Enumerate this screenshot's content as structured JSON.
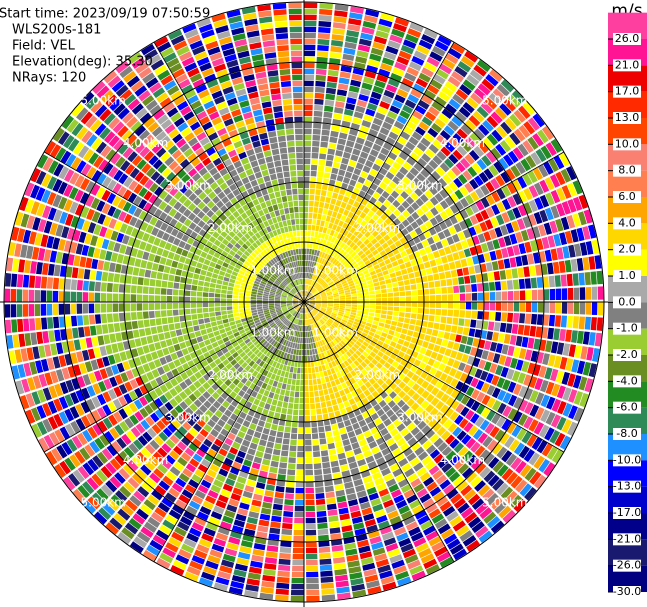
{
  "chart_data": {
    "type": "ppi",
    "header": [
      "Start time: 2023/09/19 07:50:59",
      "WLS200s-181",
      "Field: VEL",
      "Elevation(deg): 35.30",
      "NRays: 120"
    ],
    "range_rings": [
      {
        "value": 1,
        "label": "1.00km"
      },
      {
        "value": 2,
        "label": "2.00km"
      },
      {
        "value": 3,
        "label": "3.00km"
      },
      {
        "value": 4,
        "label": "4.00km"
      },
      {
        "value": 5,
        "label": "5.00km"
      }
    ],
    "colorbar": {
      "title": "m/s",
      "ticks": [
        {
          "value": 26,
          "label": "26.0"
        },
        {
          "value": 21,
          "label": "21.0"
        },
        {
          "value": 17,
          "label": "17.0"
        },
        {
          "value": 13,
          "label": "13.0"
        },
        {
          "value": 10,
          "label": "10.0"
        },
        {
          "value": 8,
          "label": "8.0"
        },
        {
          "value": 6,
          "label": "6.0"
        },
        {
          "value": 4,
          "label": "4.0"
        },
        {
          "value": 2,
          "label": "2.0"
        },
        {
          "value": 1,
          "label": "1.0"
        },
        {
          "value": 0,
          "label": "0.0"
        },
        {
          "value": -1,
          "label": "-1.0"
        },
        {
          "value": -2,
          "label": "-2.0"
        },
        {
          "value": -4,
          "label": "-4.0"
        },
        {
          "value": -6,
          "label": "-6.0"
        },
        {
          "value": -8,
          "label": "-8.0"
        },
        {
          "value": -10,
          "label": "-10.0"
        },
        {
          "value": -13,
          "label": "-13.0"
        },
        {
          "value": -17,
          "label": "-17.0"
        },
        {
          "value": -21,
          "label": "-21.0"
        },
        {
          "value": -26,
          "label": "-26.0"
        },
        {
          "value": -30,
          "label": "-30.0"
        }
      ],
      "colors": [
        "#ff3fa0",
        "#ff1493",
        "#ee0000",
        "#ff2a00",
        "#ff4500",
        "#fa8072",
        "#ff7f50",
        "#ffa500",
        "#ffd700",
        "#ffff00",
        "#a9a9a9",
        "#808080",
        "#9acd32",
        "#6b8e23",
        "#228b22",
        "#2e8b57",
        "#1e90ff",
        "#0000ff",
        "#0000cd",
        "#00008b",
        "#191970",
        "#000080"
      ]
    }
  }
}
